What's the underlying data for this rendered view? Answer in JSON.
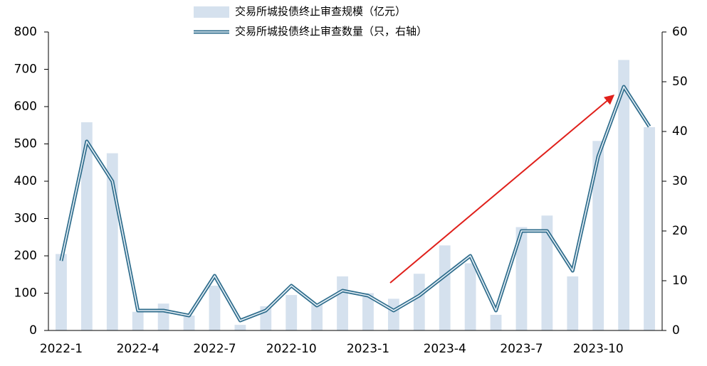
{
  "chart_data": {
    "type": "bar-line",
    "categories": [
      "2022-1",
      null,
      null,
      "2022-4",
      null,
      null,
      "2022-7",
      null,
      null,
      "2022-10",
      null,
      null,
      "2023-1",
      null,
      null,
      "2023-4",
      null,
      null,
      "2023-7",
      null,
      null,
      "2023-10",
      null,
      null
    ],
    "series": [
      {
        "name": "交易所城投债终止审查规模（亿元）",
        "type": "bar",
        "color": "#d5e1ee",
        "values": [
          205,
          558,
          475,
          50,
          72,
          40,
          120,
          15,
          65,
          95,
          70,
          145,
          100,
          85,
          152,
          228,
          180,
          42,
          277,
          308,
          145,
          508,
          725,
          545
        ]
      },
      {
        "name": "交易所城投债终止审查数量（只，右轴）",
        "type": "line",
        "axis": "y2",
        "color": "#2f6d8c",
        "values": [
          14,
          38,
          30,
          4,
          4,
          3,
          11,
          2,
          4,
          9,
          5,
          8,
          7,
          4,
          7,
          11,
          15,
          4,
          20,
          20,
          12,
          35,
          49,
          41
        ]
      }
    ],
    "ylim": [
      0,
      800
    ],
    "yticks": [
      0,
      100,
      200,
      300,
      400,
      500,
      600,
      700,
      800
    ],
    "y2lim": [
      0,
      60
    ],
    "y2ticks": [
      0,
      10,
      20,
      30,
      40,
      50,
      60
    ]
  }
}
